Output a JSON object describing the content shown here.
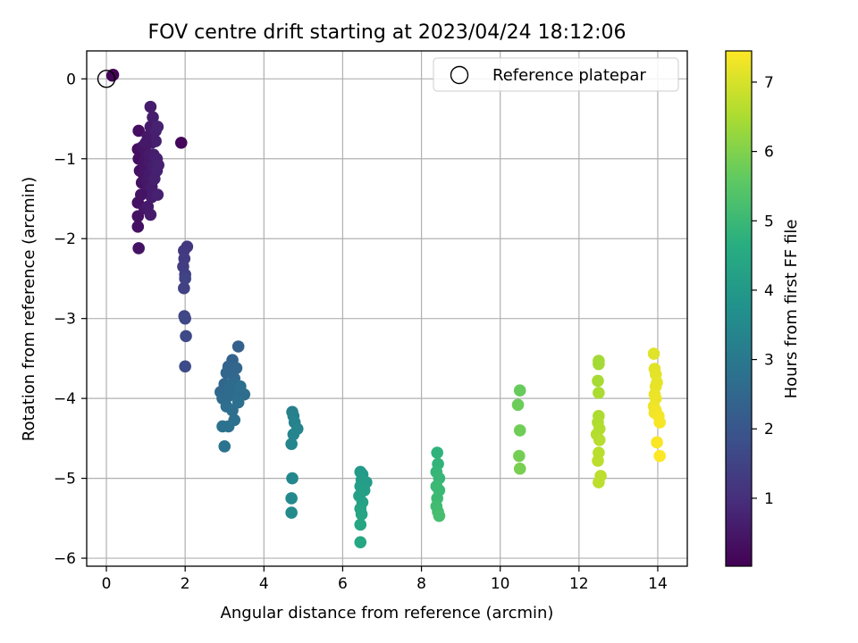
{
  "chart_data": {
    "type": "scatter",
    "title": "FOV centre drift starting at 2023/04/24 18:12:06",
    "xlabel": "Angular distance from reference (arcmin)",
    "ylabel": "Rotation from reference (arcmin)",
    "xlim": [
      -0.5,
      14.75
    ],
    "ylim": [
      -6.1,
      0.35
    ],
    "xticks": [
      "0",
      "2",
      "4",
      "6",
      "8",
      "10",
      "12",
      "14"
    ],
    "yticks": [
      "0",
      "−1",
      "−2",
      "−3",
      "−4",
      "−5",
      "−6"
    ],
    "grid": true,
    "legend": {
      "placement": "top-right",
      "entries": [
        "Reference platepar"
      ]
    },
    "colorbar": {
      "label": "Hours from first FF file",
      "range": [
        0.02,
        7.45
      ],
      "ticks": [
        "1",
        "2",
        "3",
        "4",
        "5",
        "6",
        "7"
      ],
      "colormap": "viridis"
    },
    "reference_point": {
      "x": 0,
      "y": 0
    },
    "points": [
      {
        "x": 0.17,
        "y": 0.05,
        "h": 0.05
      },
      {
        "x": 0.15,
        "y": 0.04,
        "h": 0.08
      },
      {
        "x": 1.9,
        "y": -0.8,
        "h": 0.15
      },
      {
        "x": 0.82,
        "y": -0.65,
        "h": 0.3
      },
      {
        "x": 0.8,
        "y": -0.88,
        "h": 0.3
      },
      {
        "x": 0.82,
        "y": -1.0,
        "h": 0.32
      },
      {
        "x": 0.85,
        "y": -1.15,
        "h": 0.33
      },
      {
        "x": 0.9,
        "y": -1.3,
        "h": 0.35
      },
      {
        "x": 0.8,
        "y": -1.55,
        "h": 0.35
      },
      {
        "x": 0.8,
        "y": -1.72,
        "h": 0.36
      },
      {
        "x": 0.8,
        "y": -1.85,
        "h": 0.38
      },
      {
        "x": 0.82,
        "y": -2.12,
        "h": 0.4
      },
      {
        "x": 0.92,
        "y": -0.85,
        "h": 0.4
      },
      {
        "x": 0.95,
        "y": -1.05,
        "h": 0.42
      },
      {
        "x": 0.95,
        "y": -1.2,
        "h": 0.43
      },
      {
        "x": 0.97,
        "y": -1.62,
        "h": 0.45
      },
      {
        "x": 1.0,
        "y": -0.92,
        "h": 0.45
      },
      {
        "x": 1.0,
        "y": -1.0,
        "h": 0.46
      },
      {
        "x": 1.0,
        "y": -1.12,
        "h": 0.47
      },
      {
        "x": 1.02,
        "y": -1.28,
        "h": 0.48
      },
      {
        "x": 1.05,
        "y": -0.72,
        "h": 0.5
      },
      {
        "x": 1.05,
        "y": -1.4,
        "h": 0.5
      },
      {
        "x": 1.08,
        "y": -0.95,
        "h": 0.52
      },
      {
        "x": 1.1,
        "y": -1.05,
        "h": 0.53
      },
      {
        "x": 1.1,
        "y": -1.2,
        "h": 0.55
      },
      {
        "x": 1.12,
        "y": -0.6,
        "h": 0.55
      },
      {
        "x": 1.12,
        "y": -1.7,
        "h": 0.57
      },
      {
        "x": 1.15,
        "y": -0.8,
        "h": 0.57
      },
      {
        "x": 1.15,
        "y": -1.35,
        "h": 0.58
      },
      {
        "x": 1.15,
        "y": -1.48,
        "h": 0.6
      },
      {
        "x": 1.12,
        "y": -0.35,
        "h": 0.6
      },
      {
        "x": 1.18,
        "y": -0.48,
        "h": 0.62
      },
      {
        "x": 1.2,
        "y": -0.95,
        "h": 0.62
      },
      {
        "x": 1.2,
        "y": -1.1,
        "h": 0.63
      },
      {
        "x": 1.22,
        "y": -1.25,
        "h": 0.65
      },
      {
        "x": 1.25,
        "y": -0.65,
        "h": 0.65
      },
      {
        "x": 1.25,
        "y": -0.78,
        "h": 0.67
      },
      {
        "x": 1.28,
        "y": -1.0,
        "h": 0.68
      },
      {
        "x": 1.28,
        "y": -1.15,
        "h": 0.7
      },
      {
        "x": 1.3,
        "y": -1.45,
        "h": 0.7
      },
      {
        "x": 1.3,
        "y": -0.6,
        "h": 0.72
      },
      {
        "x": 1.32,
        "y": -1.08,
        "h": 0.72
      },
      {
        "x": 1.0,
        "y": -0.8,
        "h": 0.5
      },
      {
        "x": 0.88,
        "y": -1.45,
        "h": 0.4
      },
      {
        "x": 1.05,
        "y": -1.6,
        "h": 0.55
      },
      {
        "x": 2.05,
        "y": -2.1,
        "h": 1.2
      },
      {
        "x": 1.97,
        "y": -2.15,
        "h": 1.25
      },
      {
        "x": 1.98,
        "y": -2.25,
        "h": 1.3
      },
      {
        "x": 1.95,
        "y": -2.35,
        "h": 1.35
      },
      {
        "x": 2.0,
        "y": -2.45,
        "h": 1.4
      },
      {
        "x": 1.97,
        "y": -2.62,
        "h": 1.45
      },
      {
        "x": 2.0,
        "y": -2.5,
        "h": 1.5
      },
      {
        "x": 1.98,
        "y": -2.97,
        "h": 1.55
      },
      {
        "x": 2.0,
        "y": -3.0,
        "h": 1.6
      },
      {
        "x": 2.02,
        "y": -3.22,
        "h": 1.65
      },
      {
        "x": 2.0,
        "y": -3.6,
        "h": 1.7
      },
      {
        "x": 3.35,
        "y": -3.35,
        "h": 2.3
      },
      {
        "x": 3.2,
        "y": -3.52,
        "h": 2.35
      },
      {
        "x": 3.1,
        "y": -3.6,
        "h": 2.4
      },
      {
        "x": 3.05,
        "y": -3.68,
        "h": 2.45
      },
      {
        "x": 3.3,
        "y": -3.62,
        "h": 2.45
      },
      {
        "x": 3.0,
        "y": -3.82,
        "h": 2.5
      },
      {
        "x": 3.15,
        "y": -3.9,
        "h": 2.5
      },
      {
        "x": 3.25,
        "y": -3.75,
        "h": 2.55
      },
      {
        "x": 2.9,
        "y": -3.92,
        "h": 2.55
      },
      {
        "x": 2.95,
        "y": -4.0,
        "h": 2.6
      },
      {
        "x": 3.1,
        "y": -3.97,
        "h": 2.6
      },
      {
        "x": 3.3,
        "y": -3.92,
        "h": 2.65
      },
      {
        "x": 3.5,
        "y": -3.95,
        "h": 2.65
      },
      {
        "x": 3.05,
        "y": -4.1,
        "h": 2.7
      },
      {
        "x": 3.2,
        "y": -4.15,
        "h": 2.7
      },
      {
        "x": 3.35,
        "y": -4.05,
        "h": 2.75
      },
      {
        "x": 3.25,
        "y": -4.27,
        "h": 2.75
      },
      {
        "x": 2.95,
        "y": -4.35,
        "h": 2.8
      },
      {
        "x": 3.1,
        "y": -4.35,
        "h": 2.8
      },
      {
        "x": 3.0,
        "y": -4.6,
        "h": 2.85
      },
      {
        "x": 3.15,
        "y": -3.85,
        "h": 2.6
      },
      {
        "x": 3.4,
        "y": -3.85,
        "h": 2.7
      },
      {
        "x": 4.72,
        "y": -4.17,
        "h": 3.2
      },
      {
        "x": 4.75,
        "y": -4.22,
        "h": 3.25
      },
      {
        "x": 4.78,
        "y": -4.3,
        "h": 3.3
      },
      {
        "x": 4.75,
        "y": -4.45,
        "h": 3.35
      },
      {
        "x": 4.85,
        "y": -4.38,
        "h": 3.35
      },
      {
        "x": 4.7,
        "y": -4.57,
        "h": 3.4
      },
      {
        "x": 4.72,
        "y": -5.0,
        "h": 3.45
      },
      {
        "x": 4.7,
        "y": -5.25,
        "h": 3.5
      },
      {
        "x": 4.7,
        "y": -5.43,
        "h": 3.55
      },
      {
        "x": 6.45,
        "y": -4.92,
        "h": 4.0
      },
      {
        "x": 6.5,
        "y": -4.95,
        "h": 4.05
      },
      {
        "x": 6.48,
        "y": -5.02,
        "h": 4.1
      },
      {
        "x": 6.6,
        "y": -5.05,
        "h": 4.1
      },
      {
        "x": 6.45,
        "y": -5.1,
        "h": 4.15
      },
      {
        "x": 6.55,
        "y": -5.15,
        "h": 4.2
      },
      {
        "x": 6.42,
        "y": -5.22,
        "h": 4.2
      },
      {
        "x": 6.5,
        "y": -5.3,
        "h": 4.25
      },
      {
        "x": 6.45,
        "y": -5.38,
        "h": 4.3
      },
      {
        "x": 6.48,
        "y": -5.45,
        "h": 4.35
      },
      {
        "x": 6.45,
        "y": -5.58,
        "h": 4.4
      },
      {
        "x": 6.45,
        "y": -5.8,
        "h": 4.45
      },
      {
        "x": 8.4,
        "y": -4.68,
        "h": 4.8
      },
      {
        "x": 8.42,
        "y": -4.82,
        "h": 4.85
      },
      {
        "x": 8.38,
        "y": -4.92,
        "h": 4.9
      },
      {
        "x": 8.45,
        "y": -5.0,
        "h": 4.95
      },
      {
        "x": 8.38,
        "y": -5.1,
        "h": 5.0
      },
      {
        "x": 8.45,
        "y": -5.15,
        "h": 5.0
      },
      {
        "x": 8.4,
        "y": -5.25,
        "h": 5.05
      },
      {
        "x": 8.38,
        "y": -5.35,
        "h": 5.1
      },
      {
        "x": 8.42,
        "y": -5.42,
        "h": 5.15
      },
      {
        "x": 8.45,
        "y": -5.47,
        "h": 5.2
      },
      {
        "x": 10.5,
        "y": -3.9,
        "h": 5.7
      },
      {
        "x": 10.45,
        "y": -4.08,
        "h": 5.75
      },
      {
        "x": 10.5,
        "y": -4.4,
        "h": 5.8
      },
      {
        "x": 10.48,
        "y": -4.72,
        "h": 5.85
      },
      {
        "x": 10.5,
        "y": -4.88,
        "h": 5.9
      },
      {
        "x": 12.5,
        "y": -3.53,
        "h": 6.4
      },
      {
        "x": 12.5,
        "y": -3.57,
        "h": 6.42
      },
      {
        "x": 12.48,
        "y": -3.78,
        "h": 6.45
      },
      {
        "x": 12.5,
        "y": -3.93,
        "h": 6.5
      },
      {
        "x": 12.5,
        "y": -4.22,
        "h": 6.52
      },
      {
        "x": 12.48,
        "y": -4.3,
        "h": 6.55
      },
      {
        "x": 12.52,
        "y": -4.38,
        "h": 6.58
      },
      {
        "x": 12.45,
        "y": -4.45,
        "h": 6.6
      },
      {
        "x": 12.52,
        "y": -4.52,
        "h": 6.62
      },
      {
        "x": 12.5,
        "y": -4.68,
        "h": 6.65
      },
      {
        "x": 12.48,
        "y": -4.78,
        "h": 6.68
      },
      {
        "x": 12.55,
        "y": -4.97,
        "h": 6.7
      },
      {
        "x": 12.5,
        "y": -5.05,
        "h": 6.72
      },
      {
        "x": 13.9,
        "y": -3.44,
        "h": 7.1
      },
      {
        "x": 13.92,
        "y": -3.63,
        "h": 7.12
      },
      {
        "x": 13.95,
        "y": -3.7,
        "h": 7.15
      },
      {
        "x": 13.98,
        "y": -3.8,
        "h": 7.17
      },
      {
        "x": 13.95,
        "y": -3.85,
        "h": 7.2
      },
      {
        "x": 13.92,
        "y": -3.95,
        "h": 7.22
      },
      {
        "x": 13.95,
        "y": -4.0,
        "h": 7.25
      },
      {
        "x": 13.9,
        "y": -4.1,
        "h": 7.27
      },
      {
        "x": 13.95,
        "y": -4.15,
        "h": 7.3
      },
      {
        "x": 13.92,
        "y": -4.18,
        "h": 7.32
      },
      {
        "x": 14.02,
        "y": -4.22,
        "h": 7.35
      },
      {
        "x": 14.05,
        "y": -4.3,
        "h": 7.38
      },
      {
        "x": 13.98,
        "y": -4.55,
        "h": 7.4
      },
      {
        "x": 14.05,
        "y": -4.72,
        "h": 7.43
      }
    ]
  }
}
